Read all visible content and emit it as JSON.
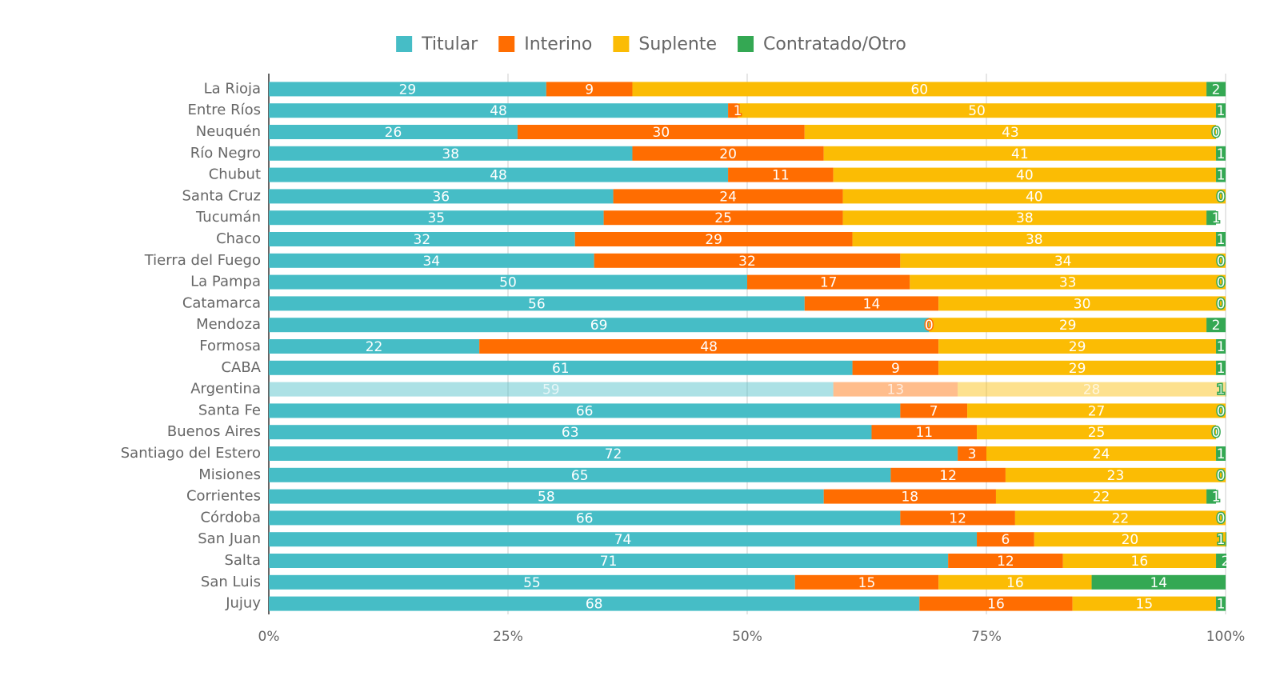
{
  "chart_data": {
    "type": "stacked_barh",
    "categories": [
      "La Rioja",
      "Entre Ríos",
      "Neuquén",
      "Río Negro",
      "Chubut",
      "Santa Cruz",
      "Tucumán",
      "Chaco",
      "Tierra del Fuego",
      "La Pampa",
      "Catamarca",
      "Mendoza",
      "Formosa",
      "CABA",
      "Argentina",
      "Santa Fe",
      "Buenos Aires",
      "Santiago del Estero",
      "Misiones",
      "Corrientes",
      "Córdoba",
      "San Juan",
      "Salta",
      "San Luis",
      "Jujuy"
    ],
    "series": [
      {
        "name": "Titular",
        "color": "#46bdc6",
        "values": [
          29,
          48,
          26,
          38,
          48,
          36,
          35,
          32,
          34,
          50,
          56,
          69,
          22,
          61,
          59,
          66,
          63,
          72,
          65,
          58,
          66,
          74,
          71,
          55,
          68
        ]
      },
      {
        "name": "Interino",
        "color": "#ff6d01",
        "values": [
          9,
          1,
          30,
          20,
          11,
          24,
          25,
          29,
          32,
          17,
          14,
          0,
          48,
          9,
          13,
          7,
          11,
          3,
          12,
          18,
          12,
          6,
          12,
          15,
          16
        ]
      },
      {
        "name": "Suplente",
        "color": "#fbbc04",
        "values": [
          60,
          50,
          43,
          41,
          40,
          40,
          38,
          38,
          34,
          33,
          30,
          29,
          29,
          29,
          28,
          27,
          25,
          24,
          23,
          22,
          22,
          20,
          16,
          16,
          15
        ]
      },
      {
        "name": "Contratado/Otro",
        "color": "#34a853",
        "values": [
          2,
          1,
          0,
          1,
          1,
          0,
          1,
          1,
          0,
          0,
          0,
          2,
          1,
          1,
          1,
          0,
          0,
          1,
          0,
          1,
          0,
          1,
          2,
          14,
          1
        ]
      }
    ],
    "xlim": [
      0,
      100
    ],
    "xticks": [
      {
        "value": 0,
        "label": "0%"
      },
      {
        "value": 25,
        "label": "25%"
      },
      {
        "value": 50,
        "label": "50%"
      },
      {
        "value": 75,
        "label": "75%"
      },
      {
        "value": 100,
        "label": "100%"
      }
    ],
    "grid": true,
    "legend": "top",
    "dimmed_categories": [
      "Argentina"
    ]
  }
}
